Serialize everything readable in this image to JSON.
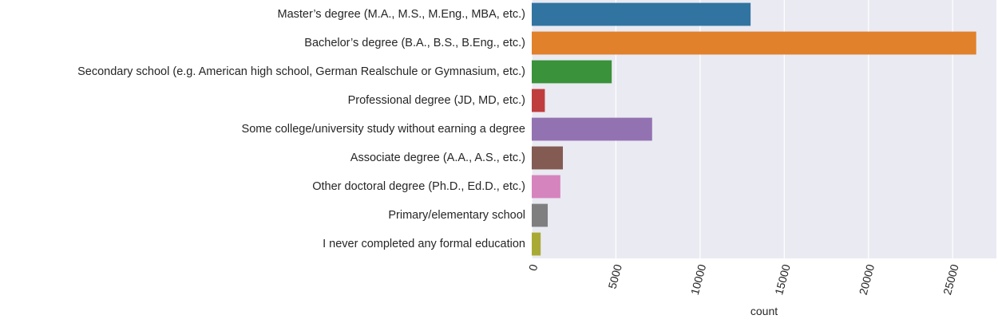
{
  "chart_data": {
    "type": "bar",
    "orientation": "horizontal",
    "categories": [
      "Master’s degree (M.A., M.S., M.Eng., MBA, etc.)",
      "Bachelor’s degree (B.A., B.S., B.Eng., etc.)",
      "Secondary school (e.g. American high school, German Realschule or Gymnasium, etc.)",
      "Professional degree (JD, MD, etc.)",
      "Some college/university study without earning a degree",
      "Associate degree (A.A., A.S., etc.)",
      "Other doctoral degree (Ph.D., Ed.D., etc.)",
      "Primary/elementary school",
      "I never completed any formal education"
    ],
    "values": [
      13000,
      26400,
      4750,
      780,
      7150,
      1850,
      1700,
      950,
      530
    ],
    "colors": [
      "#3274a1",
      "#e1812c",
      "#3a923a",
      "#c03d3e",
      "#9372b2",
      "#845b53",
      "#d684bd",
      "#7f7f7f",
      "#a9aa35"
    ],
    "xlabel": "count",
    "ylabel": "",
    "xlim": [
      0,
      27600
    ],
    "xticks": [
      "0",
      "5000",
      "10000",
      "15000",
      "20000",
      "25000"
    ],
    "xtick_values": [
      0,
      5000,
      10000,
      15000,
      20000,
      25000
    ],
    "grid": true,
    "background": "#eaeaf2",
    "grid_color": "#ffffff"
  }
}
